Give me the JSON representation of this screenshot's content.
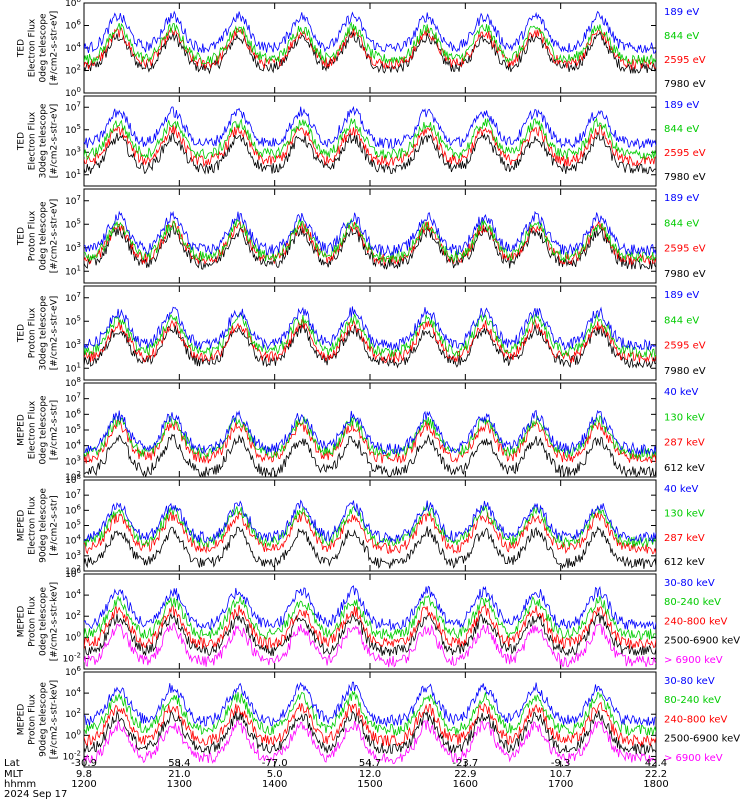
{
  "figure": {
    "date_label": "2024 Sep 17",
    "axis_row_labels": [
      "Lat",
      "MLT",
      "hhmm"
    ]
  },
  "colors": {
    "black": "#000000",
    "red": "#ff0000",
    "green": "#00cc00",
    "blue": "#0000ff",
    "magenta": "#ff00ff"
  },
  "chart_data": [
    {
      "type": "line",
      "yscale": "log",
      "ylim_exp": [
        0,
        8
      ],
      "ylabel": [
        "TED",
        "Electron Flux",
        "0deg telescope",
        "[#/cm2-s-str-eV]"
      ],
      "ytick_exps": [
        0,
        2,
        4,
        6,
        8
      ],
      "series": [
        {
          "name": "7980 eV",
          "color": "black",
          "level": 2.2
        },
        {
          "name": "2595 eV",
          "color": "red",
          "level": 2.6
        },
        {
          "name": "844 eV",
          "color": "green",
          "level": 3.0
        },
        {
          "name": "189 eV",
          "color": "blue",
          "level": 4.0
        }
      ]
    },
    {
      "type": "line",
      "yscale": "log",
      "ylim_exp": [
        0,
        8
      ],
      "ylabel": [
        "TED",
        "Electron Flux",
        "30deg telescope",
        "[#/cm2-s-str-eV]"
      ],
      "ytick_exps": [
        1,
        3,
        5,
        7
      ],
      "series": [
        {
          "name": "7980 eV",
          "color": "black",
          "level": 1.5
        },
        {
          "name": "2595 eV",
          "color": "red",
          "level": 2.2
        },
        {
          "name": "844 eV",
          "color": "green",
          "level": 2.8
        },
        {
          "name": "189 eV",
          "color": "blue",
          "level": 3.8
        }
      ]
    },
    {
      "type": "line",
      "yscale": "log",
      "ylim_exp": [
        0,
        8
      ],
      "ylabel": [
        "TED",
        "Proton Flux",
        "0deg telescope",
        "[#/cm2-s-str-eV]"
      ],
      "ytick_exps": [
        1,
        3,
        5,
        7
      ],
      "series": [
        {
          "name": "7980 eV",
          "color": "black",
          "level": 1.6
        },
        {
          "name": "2595 eV",
          "color": "red",
          "level": 2.0
        },
        {
          "name": "844 eV",
          "color": "green",
          "level": 2.2
        },
        {
          "name": "189 eV",
          "color": "blue",
          "level": 2.8
        }
      ]
    },
    {
      "type": "line",
      "yscale": "log",
      "ylim_exp": [
        0,
        8
      ],
      "ylabel": [
        "TED",
        "Proton Flux",
        "30deg telescope",
        "[#/cm2-s-str-eV]"
      ],
      "ytick_exps": [
        1,
        3,
        5,
        7
      ],
      "series": [
        {
          "name": "7980 eV",
          "color": "black",
          "level": 1.5
        },
        {
          "name": "2595 eV",
          "color": "red",
          "level": 1.9
        },
        {
          "name": "844 eV",
          "color": "green",
          "level": 2.4
        },
        {
          "name": "189 eV",
          "color": "blue",
          "level": 3.0
        }
      ]
    },
    {
      "type": "line",
      "yscale": "log",
      "ylim_exp": [
        2,
        8
      ],
      "ylabel": [
        "MEPED",
        "Electron Flux",
        "0deg telescope",
        "[#/cm2-s-str]"
      ],
      "ytick_exps": [
        2,
        3,
        4,
        5,
        6,
        7,
        8
      ],
      "series": [
        {
          "name": "612 keV",
          "color": "black",
          "level": 2.3
        },
        {
          "name": "287 keV",
          "color": "red",
          "level": 3.2
        },
        {
          "name": "130 keV",
          "color": "green",
          "level": 3.5
        },
        {
          "name": "40 keV",
          "color": "blue",
          "level": 3.8
        }
      ]
    },
    {
      "type": "line",
      "yscale": "log",
      "ylim_exp": [
        2,
        8
      ],
      "ylabel": [
        "MEPED",
        "Electron Flux",
        "90deg telescope",
        "[#/cm2-s-str]"
      ],
      "ytick_exps": [
        2,
        3,
        4,
        5,
        6,
        7,
        8
      ],
      "series": [
        {
          "name": "612 keV",
          "color": "black",
          "level": 2.5
        },
        {
          "name": "287 keV",
          "color": "red",
          "level": 3.5
        },
        {
          "name": "130 keV",
          "color": "green",
          "level": 3.9
        },
        {
          "name": "40 keV",
          "color": "blue",
          "level": 4.2
        }
      ]
    },
    {
      "type": "line",
      "yscale": "log",
      "ylim_exp": [
        -3,
        6
      ],
      "ylabel": [
        "MEPED",
        "Proton Flux",
        "0deg telescope",
        "[#/cm2-s-str-keV]"
      ],
      "ytick_exps": [
        -2,
        0,
        2,
        4,
        6
      ],
      "series": [
        {
          "name": "> 6900 keV",
          "color": "magenta",
          "level": -2.3
        },
        {
          "name": "2500-6900 keV",
          "color": "black",
          "level": -1.3
        },
        {
          "name": "240-800 keV",
          "color": "red",
          "level": -0.6
        },
        {
          "name": "80-240 keV",
          "color": "green",
          "level": 0.3
        },
        {
          "name": "30-80 keV",
          "color": "blue",
          "level": 1.2
        }
      ]
    },
    {
      "type": "line",
      "yscale": "log",
      "ylim_exp": [
        -3,
        6
      ],
      "ylabel": [
        "MEPED",
        "Proton Flux",
        "90deg telescope",
        "[#/cm2-s-str-keV]"
      ],
      "ytick_exps": [
        -2,
        0,
        2,
        4,
        6
      ],
      "series": [
        {
          "name": "> 6900 keV",
          "color": "magenta",
          "level": -2.2
        },
        {
          "name": "2500-6900 keV",
          "color": "black",
          "level": -1.3
        },
        {
          "name": "240-800 keV",
          "color": "red",
          "level": -0.5
        },
        {
          "name": "80-240 keV",
          "color": "green",
          "level": 0.5
        },
        {
          "name": "30-80 keV",
          "color": "blue",
          "level": 1.4
        }
      ]
    }
  ],
  "x_axis": {
    "ticks": [
      {
        "lat": "-30.9",
        "mlt": "9.8",
        "hhmm": "1200"
      },
      {
        "lat": "58.4",
        "mlt": "21.0",
        "hhmm": "1300"
      },
      {
        "lat": "-77.0",
        "mlt": "5.0",
        "hhmm": "1400"
      },
      {
        "lat": "54.7",
        "mlt": "12.0",
        "hhmm": "1500"
      },
      {
        "lat": "-23.7",
        "mlt": "22.9",
        "hhmm": "1600"
      },
      {
        "lat": "-9.3",
        "mlt": "10.7",
        "hhmm": "1700"
      },
      {
        "lat": "42.4",
        "mlt": "22.2",
        "hhmm": "1800"
      }
    ]
  }
}
